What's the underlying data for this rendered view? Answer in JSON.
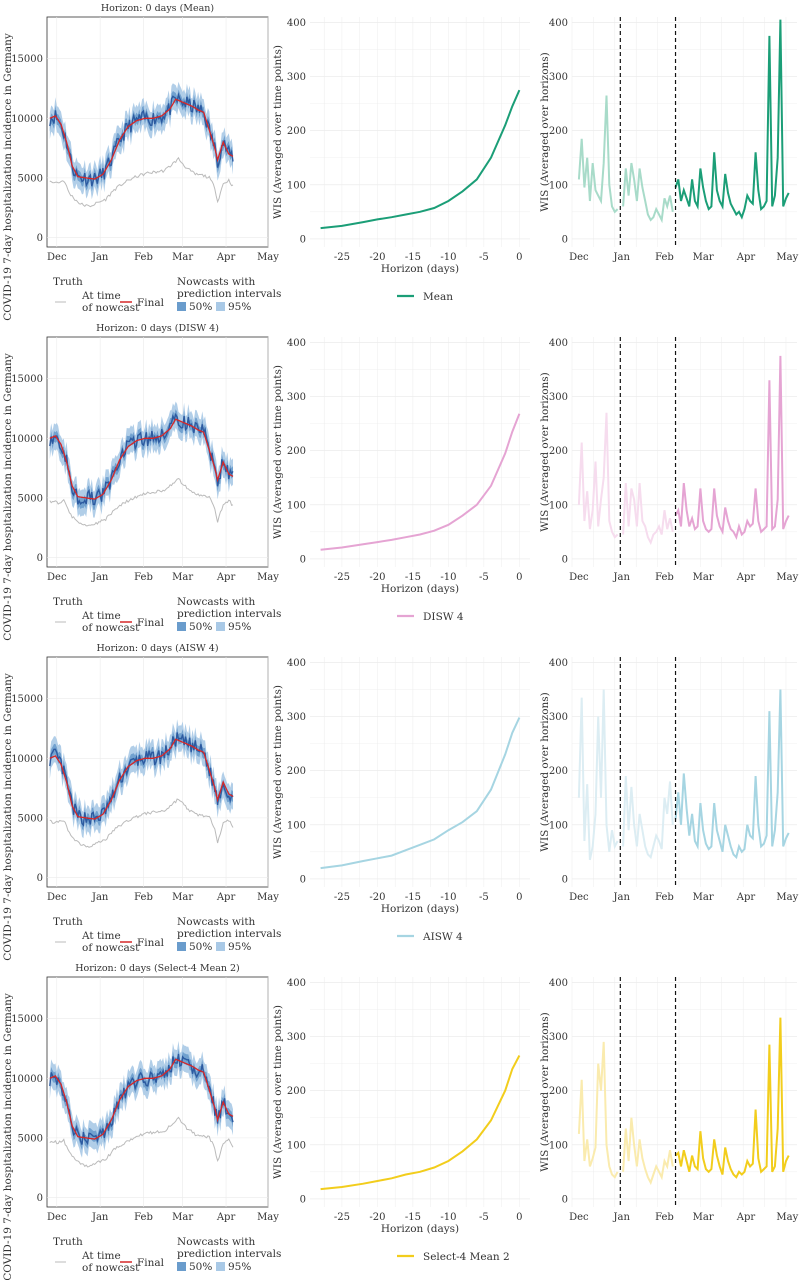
{
  "months": [
    "Dec",
    "Jan",
    "Feb",
    "Mar",
    "Apr",
    "May"
  ],
  "legend_labels": {
    "truth_title": "Truth",
    "at_time_line1": "At time",
    "at_time_line2": "of nowcast",
    "final": "Final",
    "nowcasts_line1": "Nowcasts with",
    "nowcasts_line2": "prediction intervals",
    "pi50": "50%",
    "pi95": "95%"
  },
  "colors": {
    "final_truth": "#d62728",
    "at_time_truth": "#bbbbbb",
    "nowcast": "#2c5aa0",
    "pi50": "#6a9ccc",
    "pi95": "#a9c9e6"
  },
  "chart_data": [
    {
      "type": "line",
      "title": "Horizon: 0 days (Mean)",
      "model": "Mean",
      "color": "#1b9e77",
      "light_color": "#a8dbc9",
      "nowcast": {
        "ylabel": "COVID-19 7-day hospitalization incidence in Germany",
        "ylim": [
          -800,
          18500
        ],
        "yticks": [
          0,
          5000,
          10000,
          15000
        ],
        "series": [
          "At time of nowcast",
          "Final",
          "Nowcast",
          "50%",
          "95%"
        ]
      },
      "wis_horizon": {
        "xlabel": "Horizon (days)",
        "ylabel": "WIS (Averaged over time points)",
        "xticks": [
          -25,
          -20,
          -15,
          -10,
          -5,
          0
        ],
        "yticks": [
          0,
          100,
          200,
          300,
          400
        ],
        "ylim": [
          -15,
          410
        ],
        "x": [
          -28,
          -25,
          -22,
          -20,
          -18,
          -16,
          -14,
          -12,
          -10,
          -8,
          -6,
          -4,
          -2,
          -1,
          0
        ],
        "y": [
          20,
          24,
          31,
          36,
          40,
          45,
          50,
          57,
          70,
          88,
          110,
          150,
          210,
          245,
          275
        ]
      },
      "wis_time": {
        "ylabel": "WIS (Averaged over horizons)",
        "yticks": [
          0,
          100,
          200,
          300,
          400
        ],
        "ylim": [
          -15,
          410
        ],
        "xlim_days": [
          -5,
          158
        ],
        "vlines_days": [
          30,
          70
        ],
        "x": [
          0,
          2,
          4,
          6,
          8,
          10,
          12,
          14,
          16,
          18,
          20,
          22,
          24,
          26,
          28,
          30,
          32,
          34,
          36,
          38,
          40,
          42,
          44,
          46,
          48,
          50,
          52,
          54,
          56,
          58,
          60,
          62,
          64,
          66,
          68,
          70,
          72,
          74,
          76,
          78,
          80,
          82,
          84,
          86,
          88,
          90,
          92,
          94,
          96,
          98,
          100,
          102,
          104,
          106,
          108,
          110,
          112,
          114,
          116,
          118,
          120,
          122,
          124,
          126,
          128,
          130,
          132,
          134,
          136,
          138,
          140,
          142,
          144,
          146,
          148,
          150,
          152
        ],
        "y": [
          110,
          185,
          95,
          150,
          70,
          140,
          90,
          80,
          70,
          140,
          265,
          100,
          60,
          50,
          55,
          40,
          60,
          130,
          80,
          140,
          110,
          70,
          130,
          95,
          70,
          45,
          35,
          40,
          55,
          45,
          35,
          75,
          60,
          80,
          50,
          95,
          110,
          70,
          90,
          75,
          60,
          110,
          70,
          60,
          130,
          95,
          70,
          55,
          60,
          160,
          90,
          70,
          60,
          120,
          85,
          65,
          55,
          45,
          50,
          40,
          55,
          80,
          70,
          65,
          160,
          90,
          55,
          60,
          70,
          375,
          60,
          80,
          150,
          405,
          60,
          75,
          85
        ]
      }
    },
    {
      "type": "line",
      "title": "Horizon: 0 days (DISW 4)",
      "model": "DISW 4",
      "color": "#e5a4d3",
      "light_color": "#f6dcee",
      "nowcast": {
        "ylabel": "COVID-19 7-day hospitalization incidence in Germany",
        "ylim": [
          -800,
          18500
        ],
        "yticks": [
          0,
          5000,
          10000,
          15000
        ],
        "series": [
          "At time of nowcast",
          "Final",
          "Nowcast",
          "50%",
          "95%"
        ]
      },
      "wis_horizon": {
        "xlabel": "Horizon (days)",
        "ylabel": "WIS (Averaged over time points)",
        "xticks": [
          -25,
          -20,
          -15,
          -10,
          -5,
          0
        ],
        "yticks": [
          0,
          100,
          200,
          300,
          400
        ],
        "ylim": [
          -15,
          410
        ],
        "x": [
          -28,
          -25,
          -22,
          -20,
          -18,
          -16,
          -14,
          -12,
          -10,
          -8,
          -6,
          -4,
          -2,
          -1,
          0
        ],
        "y": [
          17,
          21,
          27,
          31,
          35,
          40,
          45,
          52,
          63,
          80,
          100,
          135,
          195,
          235,
          268
        ]
      },
      "wis_time": {
        "ylabel": "WIS (Averaged over horizons)",
        "yticks": [
          0,
          100,
          200,
          300,
          400
        ],
        "ylim": [
          -15,
          410
        ],
        "xlim_days": [
          -5,
          158
        ],
        "vlines_days": [
          30,
          70
        ],
        "x": [
          0,
          2,
          4,
          6,
          8,
          10,
          12,
          14,
          16,
          18,
          20,
          22,
          24,
          26,
          28,
          30,
          32,
          34,
          36,
          38,
          40,
          42,
          44,
          46,
          48,
          50,
          52,
          54,
          56,
          58,
          60,
          62,
          64,
          66,
          68,
          70,
          72,
          74,
          76,
          78,
          80,
          82,
          84,
          86,
          88,
          90,
          92,
          94,
          96,
          98,
          100,
          102,
          104,
          106,
          108,
          110,
          112,
          114,
          116,
          118,
          120,
          122,
          124,
          126,
          128,
          130,
          132,
          134,
          136,
          138,
          140,
          142,
          144,
          146,
          148,
          150,
          152
        ],
        "y": [
          100,
          215,
          70,
          125,
          55,
          90,
          180,
          60,
          110,
          150,
          270,
          70,
          50,
          40,
          45,
          25,
          45,
          140,
          60,
          130,
          110,
          60,
          140,
          70,
          60,
          40,
          30,
          45,
          50,
          60,
          45,
          90,
          55,
          75,
          50,
          80,
          90,
          60,
          140,
          90,
          60,
          75,
          55,
          60,
          130,
          70,
          55,
          50,
          55,
          130,
          80,
          60,
          50,
          95,
          70,
          55,
          50,
          40,
          60,
          45,
          50,
          70,
          60,
          65,
          130,
          70,
          50,
          55,
          60,
          330,
          55,
          60,
          110,
          375,
          55,
          70,
          80
        ]
      }
    },
    {
      "type": "line",
      "title": "Horizon: 0 days (AISW 4)",
      "model": "AISW 4",
      "color": "#a6d5e2",
      "light_color": "#dcedf3",
      "nowcast": {
        "ylabel": "COVID-19 7-day hospitalization incidence in Germany",
        "ylim": [
          -800,
          18500
        ],
        "yticks": [
          0,
          5000,
          10000,
          15000
        ],
        "series": [
          "At time of nowcast",
          "Final",
          "Nowcast",
          "50%",
          "95%"
        ]
      },
      "wis_horizon": {
        "xlabel": "Horizon (days)",
        "ylabel": "WIS (Averaged over time points)",
        "xticks": [
          -25,
          -20,
          -15,
          -10,
          -5,
          0
        ],
        "yticks": [
          0,
          100,
          200,
          300,
          400
        ],
        "ylim": [
          -15,
          410
        ],
        "x": [
          -28,
          -25,
          -22,
          -20,
          -18,
          -16,
          -14,
          -12,
          -10,
          -8,
          -6,
          -4,
          -2,
          -1,
          0
        ],
        "y": [
          20,
          25,
          33,
          38,
          43,
          53,
          63,
          73,
          90,
          105,
          125,
          165,
          230,
          270,
          298
        ]
      },
      "wis_time": {
        "ylabel": "WIS (Averaged over horizons)",
        "yticks": [
          0,
          100,
          200,
          300,
          400
        ],
        "ylim": [
          -15,
          410
        ],
        "xlim_days": [
          -5,
          158
        ],
        "vlines_days": [
          30,
          70
        ],
        "x": [
          0,
          2,
          4,
          6,
          8,
          10,
          12,
          14,
          16,
          18,
          20,
          22,
          24,
          26,
          28,
          30,
          32,
          34,
          36,
          38,
          40,
          42,
          44,
          46,
          48,
          50,
          52,
          54,
          56,
          58,
          60,
          62,
          64,
          66,
          68,
          70,
          72,
          74,
          76,
          78,
          80,
          82,
          84,
          86,
          88,
          90,
          92,
          94,
          96,
          98,
          100,
          102,
          104,
          106,
          108,
          110,
          112,
          114,
          116,
          118,
          120,
          122,
          124,
          126,
          128,
          130,
          132,
          134,
          136,
          138,
          140,
          142,
          144,
          146,
          148,
          150,
          152
        ],
        "y": [
          150,
          335,
          70,
          175,
          35,
          60,
          120,
          300,
          150,
          350,
          100,
          50,
          90,
          60,
          70,
          40,
          60,
          190,
          90,
          170,
          100,
          60,
          120,
          90,
          60,
          45,
          40,
          60,
          80,
          70,
          55,
          150,
          120,
          180,
          100,
          110,
          160,
          100,
          195,
          130,
          80,
          120,
          70,
          60,
          140,
          90,
          65,
          55,
          60,
          140,
          90,
          70,
          50,
          100,
          80,
          60,
          45,
          40,
          60,
          50,
          55,
          100,
          80,
          75,
          190,
          100,
          60,
          65,
          80,
          310,
          60,
          90,
          160,
          350,
          60,
          75,
          85
        ]
      }
    },
    {
      "type": "line",
      "title": "Horizon: 0 days (Select-4 Mean 2)",
      "model": "Select-4 Mean 2",
      "color": "#f2cd1c",
      "light_color": "#faebae",
      "nowcast": {
        "ylabel": "COVID-19 7-day hospitalization incidence in Germany",
        "ylim": [
          -800,
          18500
        ],
        "yticks": [
          0,
          5000,
          10000,
          15000
        ],
        "series": [
          "At time of nowcast",
          "Final",
          "Nowcast",
          "50%",
          "95%"
        ]
      },
      "wis_horizon": {
        "xlabel": "Horizon (days)",
        "ylabel": "WIS (Averaged over time points)",
        "xticks": [
          -25,
          -20,
          -15,
          -10,
          -5,
          0
        ],
        "yticks": [
          0,
          100,
          200,
          300,
          400
        ],
        "ylim": [
          -15,
          410
        ],
        "x": [
          -28,
          -25,
          -22,
          -20,
          -18,
          -16,
          -14,
          -12,
          -10,
          -8,
          -6,
          -4,
          -2,
          -1,
          0
        ],
        "y": [
          18,
          22,
          28,
          33,
          38,
          45,
          50,
          58,
          70,
          88,
          110,
          145,
          200,
          240,
          265
        ]
      },
      "wis_time": {
        "ylabel": "WIS (Averaged over horizons)",
        "yticks": [
          0,
          100,
          200,
          300,
          400
        ],
        "ylim": [
          -15,
          410
        ],
        "xlim_days": [
          -5,
          158
        ],
        "vlines_days": [
          30,
          70
        ],
        "x": [
          0,
          2,
          4,
          6,
          8,
          10,
          12,
          14,
          16,
          18,
          20,
          22,
          24,
          26,
          28,
          30,
          32,
          34,
          36,
          38,
          40,
          42,
          44,
          46,
          48,
          50,
          52,
          54,
          56,
          58,
          60,
          62,
          64,
          66,
          68,
          70,
          72,
          74,
          76,
          78,
          80,
          82,
          84,
          86,
          88,
          90,
          92,
          94,
          96,
          98,
          100,
          102,
          104,
          106,
          108,
          110,
          112,
          114,
          116,
          118,
          120,
          122,
          124,
          126,
          128,
          130,
          132,
          134,
          136,
          138,
          140,
          142,
          144,
          146,
          148,
          150,
          152
        ],
        "y": [
          120,
          220,
          70,
          110,
          60,
          75,
          95,
          250,
          200,
          290,
          100,
          60,
          45,
          40,
          50,
          35,
          50,
          130,
          70,
          150,
          100,
          60,
          110,
          75,
          55,
          40,
          30,
          45,
          60,
          50,
          40,
          70,
          60,
          90,
          60,
          80,
          85,
          60,
          90,
          70,
          50,
          80,
          60,
          55,
          125,
          75,
          55,
          50,
          55,
          110,
          80,
          60,
          45,
          95,
          70,
          55,
          45,
          40,
          50,
          45,
          50,
          70,
          60,
          65,
          165,
          75,
          50,
          55,
          60,
          285,
          50,
          60,
          130,
          335,
          50,
          70,
          80
        ]
      }
    }
  ]
}
